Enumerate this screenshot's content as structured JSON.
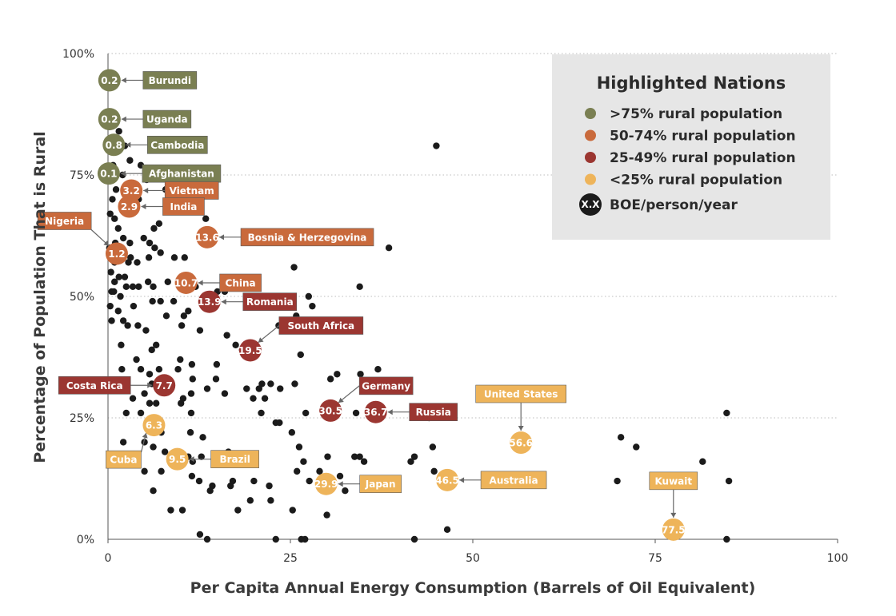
{
  "chart_data": {
    "type": "scatter",
    "title": "",
    "xlabel": "Per Capita Annual Energy Consumption (Barrels of Oil Equivalent)",
    "ylabel": "Percentage of Population That is Rural",
    "xlim": [
      0,
      100
    ],
    "ylim": [
      0,
      100
    ],
    "x_ticks": [
      {
        "v": 0,
        "label": "0"
      },
      {
        "v": 25,
        "label": "25"
      },
      {
        "v": 50,
        "label": "50"
      },
      {
        "v": 75,
        "label": "75"
      },
      {
        "v": 100,
        "label": "100"
      }
    ],
    "y_ticks": [
      {
        "v": 0,
        "label": "0%"
      },
      {
        "v": 25,
        "label": "25%"
      },
      {
        "v": 50,
        "label": "50%"
      },
      {
        "v": 75,
        "label": "75%"
      },
      {
        "v": 100,
        "label": "100%"
      }
    ],
    "colors": {
      "rural75": "#7a7f52",
      "rural50": "#c96a3c",
      "rural25": "#9b3631",
      "rural0": "#eeb45a",
      "dot": "#1b1b1b",
      "grid": "#bdbdbd",
      "leader": "#666666",
      "legend_bg": "#e6e6e6"
    },
    "legend": {
      "title": "Highlighted Nations",
      "items": [
        {
          "key": "rural75",
          "label": ">75% rural population"
        },
        {
          "key": "rural50",
          "label": "50-74% rural population"
        },
        {
          "key": "rural25",
          "label": "25-49% rural population"
        },
        {
          "key": "rural0",
          "label": "<25% rural population"
        },
        {
          "key": "boe",
          "label": "BOE/person/year",
          "symbol_text": "X.X"
        }
      ]
    },
    "highlighted": [
      {
        "name": "Burundi",
        "x": 0.2,
        "y": 94.5,
        "value": "0.2",
        "group": "rural75",
        "label_pos": "right"
      },
      {
        "name": "Uganda",
        "x": 0.2,
        "y": 86.5,
        "value": "0.2",
        "group": "rural75",
        "label_pos": "right"
      },
      {
        "name": "Cambodia",
        "x": 0.8,
        "y": 81.2,
        "value": "0.8",
        "group": "rural75",
        "label_pos": "right"
      },
      {
        "name": "Afghanistan",
        "x": 0.1,
        "y": 75.3,
        "value": "0.1",
        "group": "rural75",
        "label_pos": "right"
      },
      {
        "name": "Vietnam",
        "x": 3.2,
        "y": 71.8,
        "value": "3.2",
        "group": "rural50",
        "label_pos": "right"
      },
      {
        "name": "India",
        "x": 2.9,
        "y": 68.5,
        "value": "2.9",
        "group": "rural50",
        "label_pos": "right"
      },
      {
        "name": "Bosnia & Herzegovina",
        "x": 13.6,
        "y": 62.2,
        "value": "13.6",
        "group": "rural50",
        "label_pos": "right"
      },
      {
        "name": "Nigeria",
        "x": 1.2,
        "y": 58.8,
        "value": "1.2",
        "group": "rural50",
        "label_pos": "upleft"
      },
      {
        "name": "China",
        "x": 10.7,
        "y": 52.8,
        "value": "10.7",
        "group": "rural50",
        "label_pos": "right"
      },
      {
        "name": "Romania",
        "x": 13.9,
        "y": 48.9,
        "value": "13.9",
        "group": "rural25",
        "label_pos": "right"
      },
      {
        "name": "South Africa",
        "x": 19.5,
        "y": 38.9,
        "value": "19.5",
        "group": "rural25",
        "label_pos": "upright"
      },
      {
        "name": "Costa Rica",
        "x": 7.7,
        "y": 31.7,
        "value": "7.7",
        "group": "rural25",
        "label_pos": "left"
      },
      {
        "name": "Germany",
        "x": 30.5,
        "y": 26.5,
        "value": "30.5",
        "group": "rural25",
        "label_pos": "upright"
      },
      {
        "name": "Russia",
        "x": 36.7,
        "y": 26.2,
        "value": "36.7",
        "group": "rural25",
        "label_pos": "right"
      },
      {
        "name": "Cuba",
        "x": 6.3,
        "y": 23.5,
        "value": "6.3",
        "group": "rural0",
        "label_pos": "downleft"
      },
      {
        "name": "Brazil",
        "x": 9.5,
        "y": 16.5,
        "value": "9.5",
        "group": "rural0",
        "label_pos": "right"
      },
      {
        "name": "Japan",
        "x": 29.9,
        "y": 11.4,
        "value": "29.9",
        "group": "rural0",
        "label_pos": "right"
      },
      {
        "name": "Australia",
        "x": 46.5,
        "y": 12.2,
        "value": "46.5",
        "group": "rural0",
        "label_pos": "right"
      },
      {
        "name": "United States",
        "x": 56.6,
        "y": 19.9,
        "value": "56.6",
        "group": "rural0",
        "label_pos": "above"
      },
      {
        "name": "Kuwait",
        "x": 77.5,
        "y": 2.0,
        "value": "77.5",
        "group": "rural0",
        "label_pos": "above"
      }
    ],
    "points": [
      [
        1.5,
        84
      ],
      [
        2.3,
        81
      ],
      [
        3.0,
        78
      ],
      [
        4.5,
        77
      ],
      [
        6.2,
        82
      ],
      [
        2.0,
        75
      ],
      [
        5.3,
        74
      ],
      [
        7.9,
        72
      ],
      [
        1.1,
        72
      ],
      [
        0.6,
        70
      ],
      [
        4.2,
        70
      ],
      [
        12.5,
        70
      ],
      [
        12.1,
        68
      ],
      [
        13.4,
        66
      ],
      [
        6.3,
        64
      ],
      [
        7.0,
        65
      ],
      [
        4.9,
        62
      ],
      [
        5.7,
        61
      ],
      [
        3.0,
        61
      ],
      [
        0.2,
        60
      ],
      [
        1.0,
        61
      ],
      [
        2.1,
        62
      ],
      [
        6.4,
        60
      ],
      [
        7.2,
        59
      ],
      [
        10.5,
        58
      ],
      [
        9.1,
        58
      ],
      [
        4.0,
        57
      ],
      [
        0.9,
        57
      ],
      [
        38.5,
        60
      ],
      [
        0.4,
        55
      ],
      [
        1.5,
        54
      ],
      [
        2.3,
        54
      ],
      [
        3.4,
        52
      ],
      [
        25.5,
        56
      ],
      [
        34.5,
        52
      ],
      [
        0.5,
        51
      ],
      [
        1.7,
        50
      ],
      [
        0.8,
        51
      ],
      [
        2.5,
        52
      ],
      [
        4.2,
        52
      ],
      [
        5.5,
        53
      ],
      [
        6.2,
        52
      ],
      [
        8.2,
        53
      ],
      [
        12.0,
        52
      ],
      [
        15.0,
        51
      ],
      [
        16.0,
        51
      ],
      [
        27.5,
        50
      ],
      [
        28.0,
        48
      ],
      [
        25.8,
        46
      ],
      [
        23.4,
        44
      ],
      [
        0.3,
        48
      ],
      [
        1.4,
        47
      ],
      [
        3.5,
        48
      ],
      [
        6.1,
        49
      ],
      [
        7.2,
        49
      ],
      [
        9.0,
        49
      ],
      [
        10.4,
        46
      ],
      [
        11.0,
        47
      ],
      [
        0.5,
        45
      ],
      [
        2.1,
        45
      ],
      [
        2.7,
        44
      ],
      [
        4.1,
        44
      ],
      [
        5.2,
        43
      ],
      [
        8.0,
        46
      ],
      [
        10.1,
        44
      ],
      [
        12.6,
        43
      ],
      [
        16.3,
        42
      ],
      [
        17.5,
        40
      ],
      [
        18.4,
        39
      ],
      [
        19.8,
        40
      ],
      [
        26.4,
        38
      ],
      [
        1.8,
        40
      ],
      [
        6.0,
        39
      ],
      [
        6.6,
        40
      ],
      [
        3.9,
        37
      ],
      [
        9.9,
        37
      ],
      [
        11.5,
        36
      ],
      [
        14.9,
        36
      ],
      [
        4.5,
        35
      ],
      [
        1.9,
        35
      ],
      [
        5.7,
        34
      ],
      [
        7.0,
        35
      ],
      [
        9.6,
        35
      ],
      [
        11.6,
        33
      ],
      [
        14.8,
        33
      ],
      [
        0.5,
        31
      ],
      [
        5.0,
        30
      ],
      [
        6.0,
        32
      ],
      [
        10.3,
        29
      ],
      [
        11.4,
        30
      ],
      [
        19.0,
        31
      ],
      [
        20.7,
        31
      ],
      [
        21.1,
        32
      ],
      [
        22.3,
        32
      ],
      [
        25.6,
        32
      ],
      [
        30.5,
        33
      ],
      [
        31.4,
        34
      ],
      [
        34.6,
        34
      ],
      [
        37.0,
        35
      ],
      [
        16.0,
        30
      ],
      [
        19.9,
        29
      ],
      [
        21.5,
        29
      ],
      [
        13.6,
        31
      ],
      [
        23.6,
        31
      ],
      [
        3.4,
        29
      ],
      [
        5.7,
        28
      ],
      [
        6.6,
        28
      ],
      [
        10.0,
        28
      ],
      [
        11.4,
        26
      ],
      [
        4.5,
        26
      ],
      [
        2.5,
        26
      ],
      [
        7.3,
        22
      ],
      [
        6.0,
        22
      ],
      [
        11.3,
        22
      ],
      [
        13.0,
        21
      ],
      [
        23.0,
        24
      ],
      [
        23.5,
        24
      ],
      [
        25.2,
        22
      ],
      [
        21.0,
        26
      ],
      [
        27.1,
        26
      ],
      [
        34.0,
        26
      ],
      [
        44.0,
        25
      ],
      [
        44.5,
        19
      ],
      [
        2.1,
        20
      ],
      [
        5.0,
        20
      ],
      [
        6.2,
        19
      ],
      [
        7.8,
        18
      ],
      [
        11.0,
        17
      ],
      [
        12.8,
        17
      ],
      [
        16.5,
        18
      ],
      [
        26.2,
        19
      ],
      [
        26.8,
        16
      ],
      [
        27.6,
        12
      ],
      [
        33.8,
        17
      ],
      [
        34.5,
        17
      ],
      [
        35.1,
        16
      ],
      [
        41.5,
        16
      ],
      [
        42.0,
        17
      ],
      [
        5.0,
        14
      ],
      [
        7.3,
        14
      ],
      [
        10.5,
        16
      ],
      [
        11.6,
        16
      ],
      [
        12.5,
        12
      ],
      [
        14.3,
        11
      ],
      [
        14.0,
        10
      ],
      [
        16.8,
        11
      ],
      [
        17.1,
        12
      ],
      [
        20.0,
        12
      ],
      [
        22.1,
        11
      ],
      [
        25.9,
        14
      ],
      [
        29.0,
        14
      ],
      [
        30.5,
        12
      ],
      [
        31.8,
        13
      ],
      [
        32.5,
        10
      ],
      [
        44.7,
        14
      ],
      [
        6.2,
        10
      ],
      [
        8.6,
        6
      ],
      [
        10.2,
        6
      ],
      [
        11.5,
        13
      ],
      [
        17.8,
        6
      ],
      [
        19.5,
        8
      ],
      [
        22.3,
        8
      ],
      [
        25.3,
        6
      ],
      [
        23.0,
        0
      ],
      [
        26.5,
        0
      ],
      [
        27.0,
        0
      ],
      [
        30.0,
        5
      ],
      [
        12.6,
        1
      ],
      [
        13.6,
        0
      ],
      [
        42.0,
        0
      ],
      [
        45.0,
        81
      ],
      [
        84.8,
        26
      ],
      [
        70.3,
        21
      ],
      [
        72.4,
        19
      ],
      [
        81.5,
        16
      ],
      [
        69.8,
        12
      ],
      [
        85.1,
        12
      ],
      [
        84.8,
        0
      ],
      [
        46.5,
        2
      ],
      [
        30.1,
        17
      ],
      [
        0.7,
        77
      ],
      [
        0.9,
        66
      ],
      [
        1.4,
        64
      ],
      [
        2.0,
        68
      ],
      [
        0.3,
        67
      ],
      [
        1.6,
        59
      ],
      [
        3.1,
        58
      ],
      [
        5.6,
        58
      ],
      [
        2.8,
        57
      ],
      [
        0.9,
        53
      ]
    ]
  }
}
